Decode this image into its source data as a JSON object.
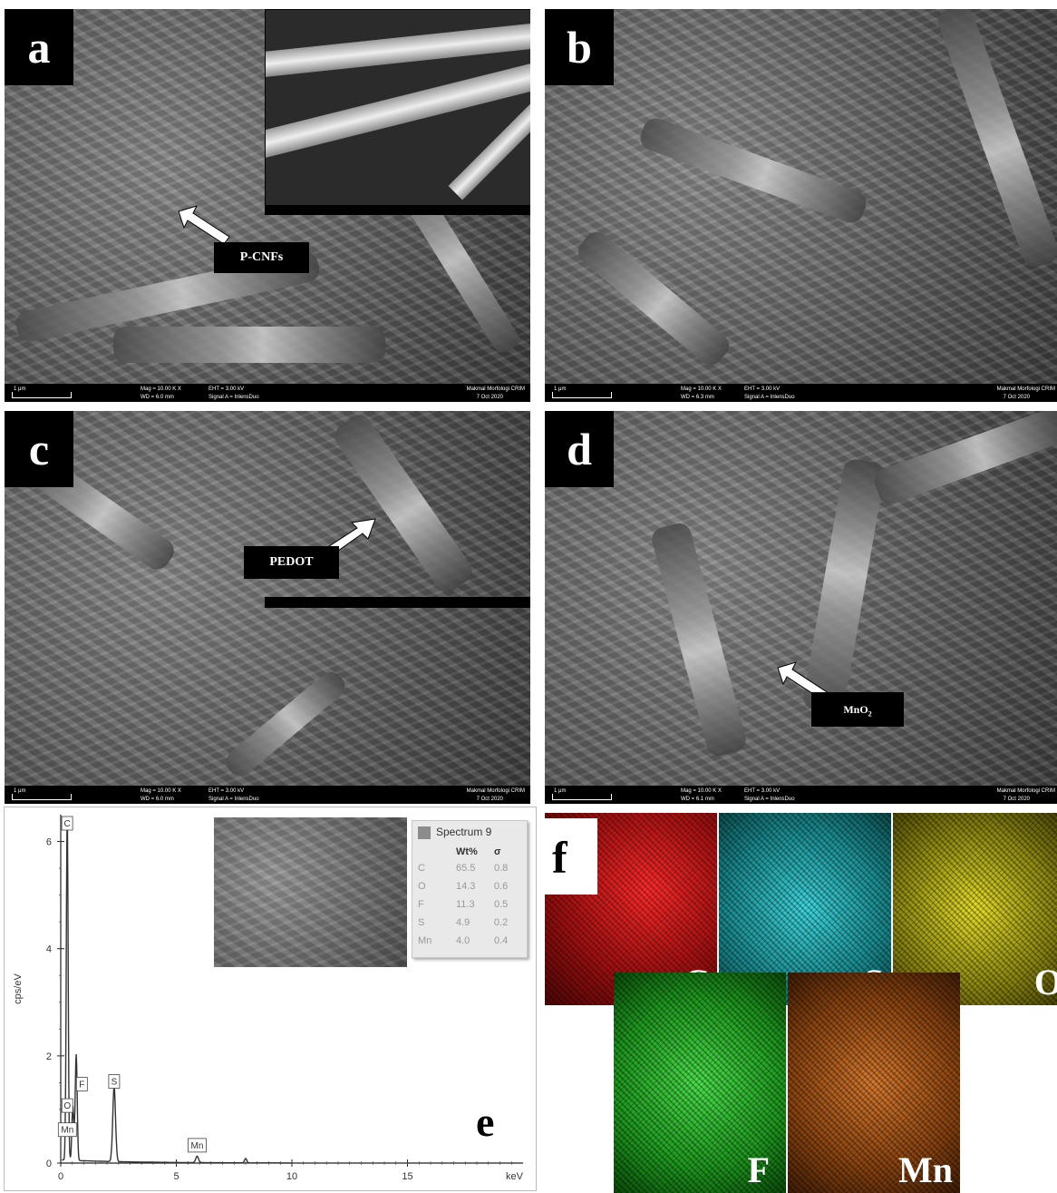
{
  "panels": {
    "a": {
      "tag": "a",
      "label": "P-CNFs",
      "scale": "1 μm",
      "info": [
        "Mag = 10.00 K X",
        "WD = 6.0 mm",
        "EHT = 3.00 kV",
        "Signal A = InlensDuo",
        "Makmal Morfologi CRIM",
        "7 Oct 2020"
      ]
    },
    "b": {
      "tag": "b",
      "scale": "1 μm",
      "info": [
        "Mag = 10.00 K X",
        "WD = 6.3 mm",
        "EHT = 3.00 kV",
        "Signal A = InlensDuo",
        "Makmal Morfologi CRIM",
        "7 Oct 2020"
      ]
    },
    "c": {
      "tag": "c",
      "label": "PEDOT",
      "scale": "1 μm",
      "info": [
        "Mag = 10.00 K X",
        "WD = 6.0 mm",
        "EHT = 3.00 kV",
        "Signal A = InlensDuo",
        "Makmal Morfologi CRIM",
        "7 Oct 2020"
      ]
    },
    "d": {
      "tag": "d",
      "label_main": "MnO",
      "label_sub": "2",
      "scale": "1 μm",
      "info": [
        "Mag = 10.00 K X",
        "WD = 6.1 mm",
        "EHT = 3.00 kV",
        "Signal A = InlensDuo",
        "Makmal Morfologi CRIM",
        "7 Oct 2020"
      ]
    },
    "e": {
      "tag": "e",
      "legend_title": "Spectrum 9",
      "table_headers": [
        "",
        "Wt%",
        "σ"
      ],
      "table_rows": [
        [
          "C",
          "65.5",
          "0.8"
        ],
        [
          "O",
          "14.3",
          "0.6"
        ],
        [
          "F",
          "11.3",
          "0.5"
        ],
        [
          "S",
          "4.9",
          "0.2"
        ],
        [
          "Mn",
          "4.0",
          "0.4"
        ]
      ]
    },
    "f": {
      "tag": "f",
      "maps": [
        "C",
        "S",
        "O",
        "F",
        "Mn"
      ]
    }
  },
  "chart_data": {
    "type": "line",
    "xlabel": "keV",
    "ylabel": "cps/eV",
    "xlim": [
      0,
      20
    ],
    "ylim": [
      0,
      6.5
    ],
    "x_ticks": [
      "0",
      "5",
      "10",
      "15"
    ],
    "y_ticks": [
      "0",
      "2",
      "4",
      "6"
    ],
    "peaks": [
      {
        "label": "C",
        "x": 0.28,
        "y": 6.5
      },
      {
        "label": "O",
        "x": 0.52,
        "y": 1.0
      },
      {
        "label": "F",
        "x": 0.68,
        "y": 1.5
      },
      {
        "label": "Mn",
        "x": 0.64,
        "y": 0.7
      },
      {
        "label": "S",
        "x": 2.31,
        "y": 1.4
      },
      {
        "label": "Mn",
        "x": 5.9,
        "y": 0.12
      }
    ]
  },
  "colors": {
    "map_C": "#c0181c",
    "map_S": "#1fa3a8",
    "map_O": "#c8c21a",
    "map_F": "#2aa12a",
    "map_Mn": "#b75a18"
  }
}
